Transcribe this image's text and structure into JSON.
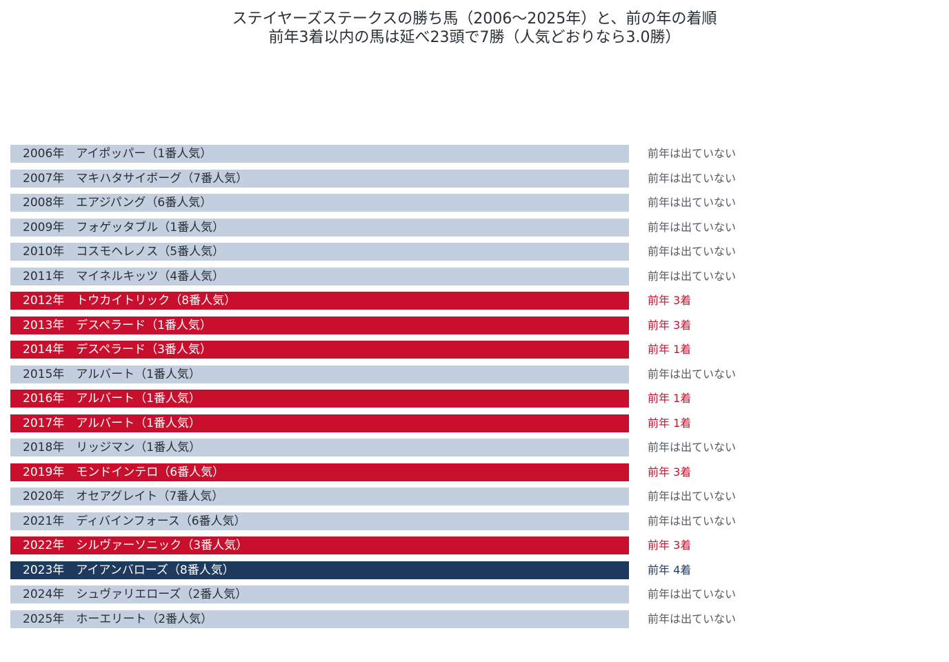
{
  "title": "ステイヤーズステークスの勝ち馬（2006〜2025年）と、前の年の着順",
  "subtitle": "前年3着以内の馬は延べ23頭で7勝（人気どおりなら3.0勝）",
  "colors": {
    "not_run": "#c3cfdf",
    "top3": "#c8102e",
    "fourth": "#1f3a5f",
    "not_run_text": "#2a2f36",
    "highlight_text": "#ffffff",
    "not_run_side": "#555b63",
    "top3_side": "#c8102e",
    "fourth_side": "#1f3a5f"
  },
  "chart_data": {
    "type": "table",
    "title": "ステイヤーズステークスの勝ち馬（2006〜2025年）と、前の年の着順",
    "subtitle": "前年3着以内の馬は延べ23頭で7勝（人気どおりなら3.0勝）",
    "rows": [
      {
        "year": 2006,
        "label": "2006年　アイポッパー（1番人気）",
        "horse": "アイポッパー",
        "popularity": 1,
        "prev_finish": null,
        "category": "not_run",
        "side_label": "前年は出ていない"
      },
      {
        "year": 2007,
        "label": "2007年　マキハタサイボーグ（7番人気）",
        "horse": "マキハタサイボーグ",
        "popularity": 7,
        "prev_finish": null,
        "category": "not_run",
        "side_label": "前年は出ていない"
      },
      {
        "year": 2008,
        "label": "2008年　エアジパング（6番人気）",
        "horse": "エアジパング",
        "popularity": 6,
        "prev_finish": null,
        "category": "not_run",
        "side_label": "前年は出ていない"
      },
      {
        "year": 2009,
        "label": "2009年　フォゲッタブル（1番人気）",
        "horse": "フォゲッタブル",
        "popularity": 1,
        "prev_finish": null,
        "category": "not_run",
        "side_label": "前年は出ていない"
      },
      {
        "year": 2010,
        "label": "2010年　コスモヘレノス（5番人気）",
        "horse": "コスモヘレノス",
        "popularity": 5,
        "prev_finish": null,
        "category": "not_run",
        "side_label": "前年は出ていない"
      },
      {
        "year": 2011,
        "label": "2011年　マイネルキッツ（4番人気）",
        "horse": "マイネルキッツ",
        "popularity": 4,
        "prev_finish": null,
        "category": "not_run",
        "side_label": "前年は出ていない"
      },
      {
        "year": 2012,
        "label": "2012年　トウカイトリック（8番人気）",
        "horse": "トウカイトリック",
        "popularity": 8,
        "prev_finish": 3,
        "category": "top3",
        "side_label": "前年 3着"
      },
      {
        "year": 2013,
        "label": "2013年　デスペラード（1番人気）",
        "horse": "デスペラード",
        "popularity": 1,
        "prev_finish": 3,
        "category": "top3",
        "side_label": "前年 3着"
      },
      {
        "year": 2014,
        "label": "2014年　デスペラード（3番人気）",
        "horse": "デスペラード",
        "popularity": 3,
        "prev_finish": 1,
        "category": "top3",
        "side_label": "前年 1着"
      },
      {
        "year": 2015,
        "label": "2015年　アルバート（1番人気）",
        "horse": "アルバート",
        "popularity": 1,
        "prev_finish": null,
        "category": "not_run",
        "side_label": "前年は出ていない"
      },
      {
        "year": 2016,
        "label": "2016年　アルバート（1番人気）",
        "horse": "アルバート",
        "popularity": 1,
        "prev_finish": 1,
        "category": "top3",
        "side_label": "前年 1着"
      },
      {
        "year": 2017,
        "label": "2017年　アルバート（1番人気）",
        "horse": "アルバート",
        "popularity": 1,
        "prev_finish": 1,
        "category": "top3",
        "side_label": "前年 1着"
      },
      {
        "year": 2018,
        "label": "2018年　リッジマン（1番人気）",
        "horse": "リッジマン",
        "popularity": 1,
        "prev_finish": null,
        "category": "not_run",
        "side_label": "前年は出ていない"
      },
      {
        "year": 2019,
        "label": "2019年　モンドインテロ（6番人気）",
        "horse": "モンドインテロ",
        "popularity": 6,
        "prev_finish": 3,
        "category": "top3",
        "side_label": "前年 3着"
      },
      {
        "year": 2020,
        "label": "2020年　オセアグレイト（7番人気）",
        "horse": "オセアグレイト",
        "popularity": 7,
        "prev_finish": null,
        "category": "not_run",
        "side_label": "前年は出ていない"
      },
      {
        "year": 2021,
        "label": "2021年　ディバインフォース（6番人気）",
        "horse": "ディバインフォース",
        "popularity": 6,
        "prev_finish": null,
        "category": "not_run",
        "side_label": "前年は出ていない"
      },
      {
        "year": 2022,
        "label": "2022年　シルヴァーソニック（3番人気）",
        "horse": "シルヴァーソニック",
        "popularity": 3,
        "prev_finish": 3,
        "category": "top3",
        "side_label": "前年 3着"
      },
      {
        "year": 2023,
        "label": "2023年　アイアンバローズ（8番人気）",
        "horse": "アイアンバローズ",
        "popularity": 8,
        "prev_finish": 4,
        "category": "fourth",
        "side_label": "前年 4着"
      },
      {
        "year": 2024,
        "label": "2024年　シュヴァリエローズ（2番人気）",
        "horse": "シュヴァリエローズ",
        "popularity": 2,
        "prev_finish": null,
        "category": "not_run",
        "side_label": "前年は出ていない"
      },
      {
        "year": 2025,
        "label": "2025年　ホーエリート（2番人気）",
        "horse": "ホーエリート",
        "popularity": 2,
        "prev_finish": null,
        "category": "not_run",
        "side_label": "前年は出ていない"
      }
    ]
  }
}
